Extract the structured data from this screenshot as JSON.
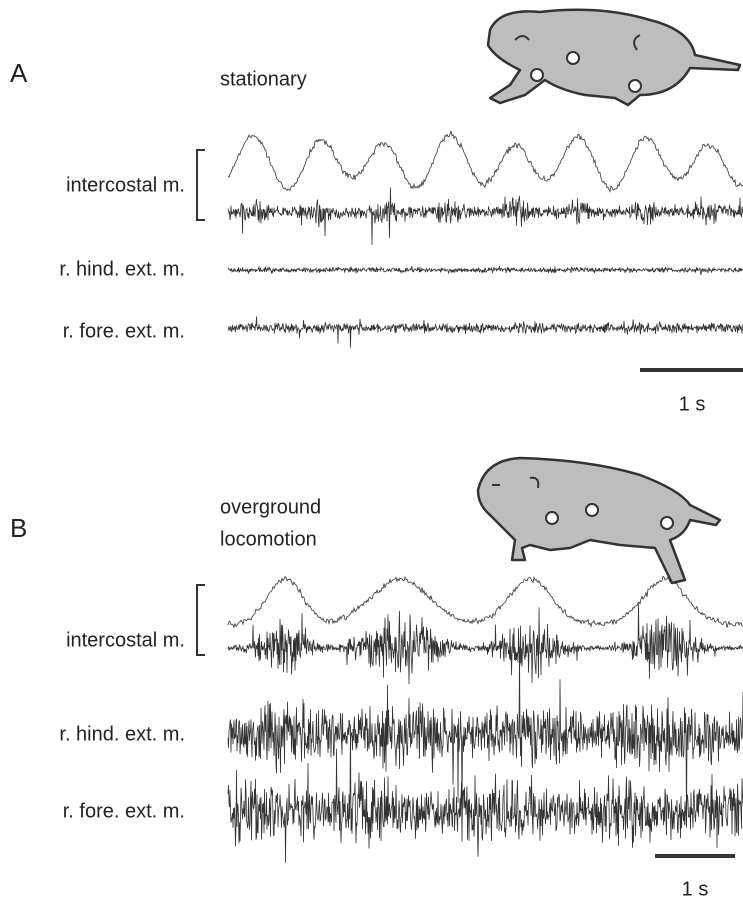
{
  "panels": [
    {
      "label": "A",
      "condition": [
        "stationary"
      ],
      "traces": [
        "intercostal m.",
        "r. hind. ext. m.",
        "r. fore. ext. m."
      ],
      "scale_bar": "1 s"
    },
    {
      "label": "B",
      "condition": [
        "overground",
        "locomotion"
      ],
      "traces": [
        "intercostal m.",
        "r. hind. ext. m.",
        "r. fore. ext. m."
      ],
      "scale_bar": "1 s"
    }
  ]
}
